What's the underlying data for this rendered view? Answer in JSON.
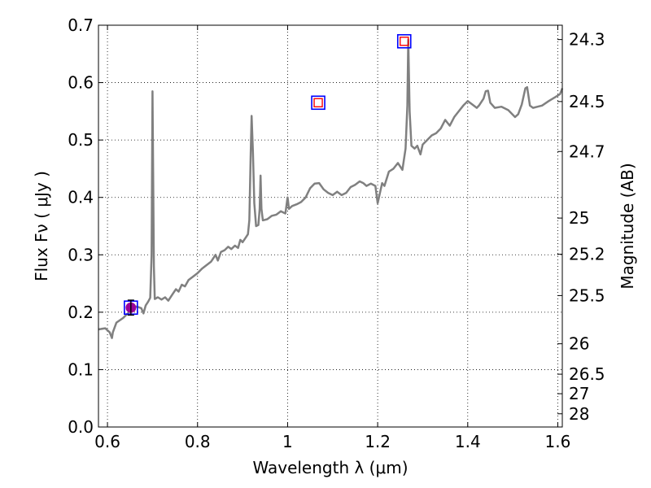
{
  "chart_data": {
    "type": "line",
    "xlabel": "Wavelength  λ (μm)",
    "ylabel": "Flux  Fν  ( μJy )",
    "ylabel_right": "Magnitude (AB)",
    "xlim": [
      0.58,
      1.61
    ],
    "ylim": [
      0.0,
      0.7
    ],
    "grid": true,
    "x_ticks": [
      0.6,
      0.8,
      1.0,
      1.2,
      1.4,
      1.6
    ],
    "x_tick_labels": [
      "0.6",
      "0.8",
      "1",
      "1.2",
      "1.4",
      "1.6"
    ],
    "y_ticks": [
      0.0,
      0.1,
      0.2,
      0.3,
      0.4,
      0.5,
      0.6,
      0.7
    ],
    "y_tick_labels": [
      "0.0",
      "0.1",
      "0.2",
      "0.3",
      "0.4",
      "0.5",
      "0.6",
      "0.7"
    ],
    "right_ticks": [
      {
        "flux": 0.675,
        "label": "24.3"
      },
      {
        "flux": 0.567,
        "label": "24.5"
      },
      {
        "flux": 0.48,
        "label": "24.7"
      },
      {
        "flux": 0.364,
        "label": "25"
      },
      {
        "flux": 0.301,
        "label": "25.2"
      },
      {
        "flux": 0.229,
        "label": "25.5"
      },
      {
        "flux": 0.145,
        "label": "26"
      },
      {
        "flux": 0.092,
        "label": "26.5"
      },
      {
        "flux": 0.058,
        "label": "27"
      },
      {
        "flux": 0.023,
        "label": "28"
      }
    ],
    "series": [
      {
        "name": "spectrum",
        "color": "#808080",
        "points": [
          [
            0.58,
            0.17
          ],
          [
            0.595,
            0.172
          ],
          [
            0.605,
            0.165
          ],
          [
            0.61,
            0.155
          ],
          [
            0.612,
            0.165
          ],
          [
            0.62,
            0.182
          ],
          [
            0.635,
            0.19
          ],
          [
            0.645,
            0.198
          ],
          [
            0.655,
            0.205
          ],
          [
            0.665,
            0.21
          ],
          [
            0.675,
            0.207
          ],
          [
            0.68,
            0.198
          ],
          [
            0.685,
            0.212
          ],
          [
            0.69,
            0.218
          ],
          [
            0.695,
            0.225
          ],
          [
            0.698,
            0.3
          ],
          [
            0.7,
            0.585
          ],
          [
            0.703,
            0.28
          ],
          [
            0.705,
            0.223
          ],
          [
            0.712,
            0.226
          ],
          [
            0.72,
            0.222
          ],
          [
            0.728,
            0.226
          ],
          [
            0.735,
            0.22
          ],
          [
            0.745,
            0.232
          ],
          [
            0.752,
            0.24
          ],
          [
            0.758,
            0.236
          ],
          [
            0.765,
            0.248
          ],
          [
            0.772,
            0.245
          ],
          [
            0.78,
            0.256
          ],
          [
            0.79,
            0.262
          ],
          [
            0.8,
            0.268
          ],
          [
            0.81,
            0.276
          ],
          [
            0.82,
            0.282
          ],
          [
            0.83,
            0.288
          ],
          [
            0.84,
            0.3
          ],
          [
            0.845,
            0.29
          ],
          [
            0.852,
            0.305
          ],
          [
            0.86,
            0.308
          ],
          [
            0.868,
            0.314
          ],
          [
            0.875,
            0.31
          ],
          [
            0.883,
            0.316
          ],
          [
            0.89,
            0.312
          ],
          [
            0.895,
            0.326
          ],
          [
            0.9,
            0.322
          ],
          [
            0.907,
            0.33
          ],
          [
            0.912,
            0.336
          ],
          [
            0.915,
            0.36
          ],
          [
            0.918,
            0.47
          ],
          [
            0.92,
            0.542
          ],
          [
            0.923,
            0.48
          ],
          [
            0.926,
            0.39
          ],
          [
            0.93,
            0.35
          ],
          [
            0.935,
            0.352
          ],
          [
            0.938,
            0.38
          ],
          [
            0.94,
            0.438
          ],
          [
            0.942,
            0.38
          ],
          [
            0.945,
            0.36
          ],
          [
            0.955,
            0.362
          ],
          [
            0.965,
            0.368
          ],
          [
            0.975,
            0.37
          ],
          [
            0.985,
            0.376
          ],
          [
            0.995,
            0.372
          ],
          [
            1.0,
            0.4
          ],
          [
            1.003,
            0.38
          ],
          [
            1.01,
            0.385
          ],
          [
            1.02,
            0.388
          ],
          [
            1.03,
            0.392
          ],
          [
            1.04,
            0.4
          ],
          [
            1.05,
            0.416
          ],
          [
            1.06,
            0.424
          ],
          [
            1.07,
            0.425
          ],
          [
            1.08,
            0.414
          ],
          [
            1.09,
            0.408
          ],
          [
            1.1,
            0.404
          ],
          [
            1.11,
            0.41
          ],
          [
            1.12,
            0.404
          ],
          [
            1.13,
            0.408
          ],
          [
            1.14,
            0.418
          ],
          [
            1.15,
            0.422
          ],
          [
            1.16,
            0.428
          ],
          [
            1.168,
            0.425
          ],
          [
            1.175,
            0.42
          ],
          [
            1.185,
            0.424
          ],
          [
            1.195,
            0.42
          ],
          [
            1.2,
            0.39
          ],
          [
            1.21,
            0.425
          ],
          [
            1.215,
            0.42
          ],
          [
            1.225,
            0.445
          ],
          [
            1.235,
            0.45
          ],
          [
            1.245,
            0.46
          ],
          [
            1.255,
            0.448
          ],
          [
            1.262,
            0.485
          ],
          [
            1.266,
            0.56
          ],
          [
            1.268,
            0.675
          ],
          [
            1.271,
            0.55
          ],
          [
            1.275,
            0.49
          ],
          [
            1.282,
            0.485
          ],
          [
            1.288,
            0.49
          ],
          [
            1.295,
            0.475
          ],
          [
            1.3,
            0.492
          ],
          [
            1.31,
            0.5
          ],
          [
            1.32,
            0.508
          ],
          [
            1.33,
            0.512
          ],
          [
            1.34,
            0.52
          ],
          [
            1.35,
            0.535
          ],
          [
            1.355,
            0.53
          ],
          [
            1.36,
            0.525
          ],
          [
            1.37,
            0.54
          ],
          [
            1.38,
            0.55
          ],
          [
            1.39,
            0.56
          ],
          [
            1.4,
            0.568
          ],
          [
            1.41,
            0.562
          ],
          [
            1.42,
            0.556
          ],
          [
            1.425,
            0.56
          ],
          [
            1.435,
            0.572
          ],
          [
            1.44,
            0.585
          ],
          [
            1.445,
            0.586
          ],
          [
            1.45,
            0.565
          ],
          [
            1.46,
            0.556
          ],
          [
            1.475,
            0.558
          ],
          [
            1.49,
            0.552
          ],
          [
            1.505,
            0.54
          ],
          [
            1.512,
            0.545
          ],
          [
            1.52,
            0.562
          ],
          [
            1.528,
            0.59
          ],
          [
            1.532,
            0.592
          ],
          [
            1.538,
            0.56
          ],
          [
            1.545,
            0.556
          ],
          [
            1.555,
            0.558
          ],
          [
            1.565,
            0.56
          ],
          [
            1.58,
            0.568
          ],
          [
            1.595,
            0.575
          ],
          [
            1.605,
            0.58
          ],
          [
            1.61,
            0.59
          ]
        ]
      }
    ],
    "photometry": [
      {
        "x": 0.652,
        "y": 0.208,
        "marker": "circle",
        "color": "#990099",
        "yerr": 0.013,
        "box_color": "#0000ff"
      },
      {
        "x": 1.068,
        "y": 0.565,
        "marker": "square-open",
        "color": "#ff0000",
        "box_color": "#0000ff"
      },
      {
        "x": 1.259,
        "y": 0.672,
        "marker": "square-open",
        "color": "#ff0000",
        "box_color": "#0000ff"
      }
    ]
  }
}
